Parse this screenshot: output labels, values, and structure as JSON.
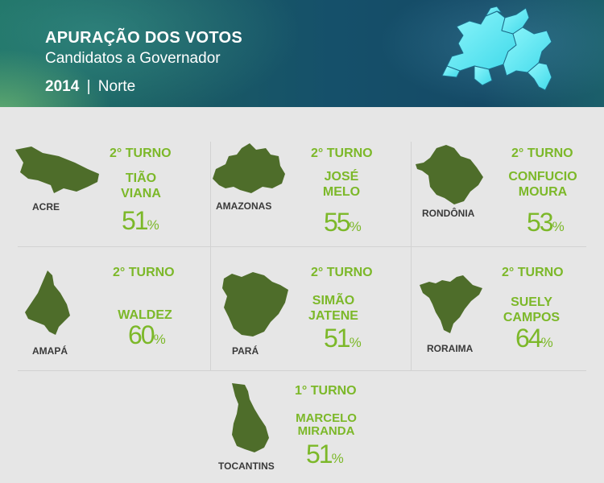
{
  "header": {
    "title": "APURAÇÃO DOS VOTOS",
    "subtitle": "Candidatos a Governador",
    "year": "2014",
    "separator": "|",
    "region": "Norte"
  },
  "colors": {
    "accent": "#7cb829",
    "map": "#4e6d2a",
    "region_map": "#63eef5"
  },
  "states": [
    {
      "name": "ACRE",
      "turno": "2° TURNO",
      "candidate": [
        "TIÃO",
        "VIANA"
      ],
      "percent": "51",
      "symbol": "%"
    },
    {
      "name": "AMAZONAS",
      "turno": "2° TURNO",
      "candidate": [
        "JOSÉ",
        "MELO"
      ],
      "percent": "55",
      "symbol": "%"
    },
    {
      "name": "RONDÔNIA",
      "turno": "2° TURNO",
      "candidate": [
        "CONFUCIO",
        "MOURA"
      ],
      "percent": "53",
      "symbol": "%"
    },
    {
      "name": "AMAPÁ",
      "turno": "2° TURNO",
      "candidate": [
        "WALDEZ"
      ],
      "percent": "60",
      "symbol": "%"
    },
    {
      "name": "PARÁ",
      "turno": "2° TURNO",
      "candidate": [
        "SIMÃO",
        "JATENE"
      ],
      "percent": "51",
      "symbol": "%"
    },
    {
      "name": "RORAIMA",
      "turno": "2° TURNO",
      "candidate": [
        "SUELY",
        "CAMPOS"
      ],
      "percent": "64",
      "symbol": "%"
    },
    {
      "name": "TOCANTINS",
      "turno": "1° TURNO",
      "candidate": [
        "MARCELO",
        "MIRANDA"
      ],
      "percent": "51",
      "symbol": "%"
    }
  ]
}
